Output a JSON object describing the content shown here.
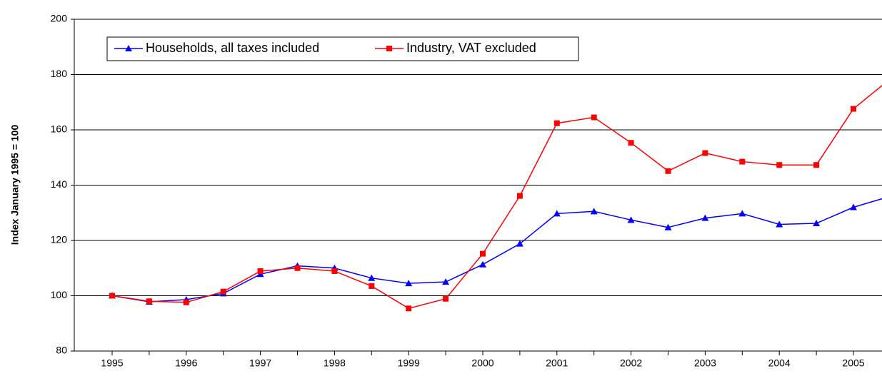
{
  "chart_data": {
    "type": "line",
    "y_label": "Index January 1995 = 100",
    "categories": [
      "1995",
      null,
      "1996",
      null,
      "1997",
      null,
      "1998",
      null,
      "1999",
      null,
      "2000",
      null,
      "2001",
      null,
      "2002",
      null,
      "2003",
      null,
      "2004",
      null,
      "2005",
      null
    ],
    "series": [
      {
        "name": "Households, all taxes included",
        "color": "#0000ff",
        "marker": "triangle",
        "values": [
          100,
          97.8,
          98.6,
          100.8,
          107.8,
          110.8,
          110,
          106.4,
          104.5,
          105,
          111.3,
          118.8,
          129.7,
          130.5,
          127.4,
          124.7,
          128.1,
          129.7,
          125.8,
          126.2,
          132,
          136
        ]
      },
      {
        "name": "Industry, VAT excluded",
        "color": "#ff0000",
        "marker": "square",
        "values": [
          100,
          98,
          97.6,
          101.5,
          108.9,
          110,
          108.9,
          103.5,
          95.4,
          98.9,
          115.2,
          136.1,
          162.4,
          164.5,
          155.3,
          145.1,
          151.6,
          148.5,
          147.3,
          147.3,
          167.6,
          178.5
        ]
      }
    ],
    "ylim": [
      80,
      200
    ],
    "yticks": [
      80,
      100,
      120,
      140,
      160,
      180,
      200
    ],
    "grid": true
  }
}
